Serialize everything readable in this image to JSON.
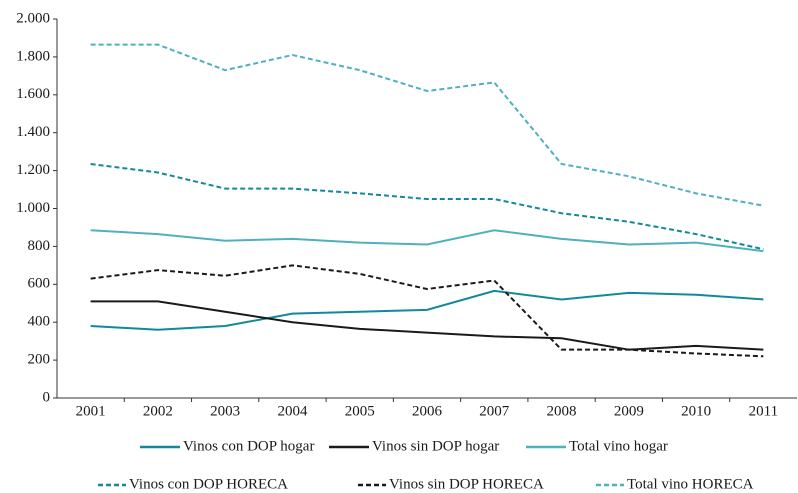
{
  "chart_data": {
    "type": "line",
    "categories": [
      "2001",
      "2002",
      "2003",
      "2004",
      "2005",
      "2006",
      "2007",
      "2008",
      "2009",
      "2010",
      "2011"
    ],
    "series": [
      {
        "name": "Vinos con DOP hogar",
        "color": "#12899a",
        "linestyle": "solid",
        "values": [
          380,
          360,
          380,
          445,
          455,
          465,
          565,
          520,
          555,
          545,
          520
        ]
      },
      {
        "name": "Vinos sin DOP hogar",
        "color": "#1a1a1a",
        "linestyle": "solid",
        "values": [
          510,
          510,
          455,
          400,
          365,
          345,
          325,
          315,
          255,
          275,
          255
        ]
      },
      {
        "name": "Total vino hogar",
        "color": "#4db1be",
        "linestyle": "solid",
        "values": [
          885,
          865,
          830,
          840,
          820,
          810,
          885,
          840,
          810,
          820,
          775
        ]
      },
      {
        "name": "Vinos con DOP HORECA",
        "color": "#12899a",
        "linestyle": "dashed",
        "values": [
          1235,
          1190,
          1105,
          1105,
          1080,
          1050,
          1050,
          975,
          930,
          865,
          785
        ]
      },
      {
        "name": "Vinos sin DOP HORECA",
        "color": "#1a1a1a",
        "linestyle": "dashed",
        "values": [
          630,
          675,
          645,
          700,
          655,
          575,
          620,
          255,
          255,
          235,
          220
        ]
      },
      {
        "name": "Total vino HORECA",
        "color": "#4db1be",
        "linestyle": "dashed",
        "values": [
          1865,
          1865,
          1730,
          1810,
          1730,
          1620,
          1665,
          1235,
          1170,
          1080,
          1015
        ]
      }
    ],
    "ylim": [
      0,
      2000
    ],
    "yticks": [
      0,
      200,
      400,
      600,
      800,
      {
        "value": 1000,
        "label": "1.000"
      },
      {
        "value": 1200,
        "label": "1.200"
      },
      {
        "value": 1400,
        "label": "1.400"
      },
      {
        "value": 1600,
        "label": "1.600"
      },
      {
        "value": 1800,
        "label": "1.800"
      },
      {
        "value": 2000,
        "label": "2.000"
      }
    ],
    "grid": false
  }
}
